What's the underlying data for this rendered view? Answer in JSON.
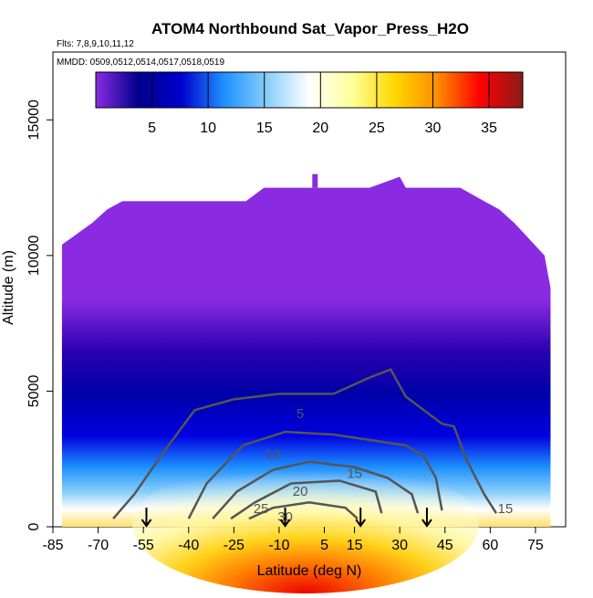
{
  "chart_data": {
    "type": "heatmap",
    "title": "ATOM4 Northbound Sat_Vapor_Press_H2O",
    "subtitle_flights": "Flts: 7,8,9,10,11,12",
    "subtitle_dates": "MMDD: 0509,0512,0514,0517,0518,0519",
    "xlabel": "Latitude (deg N)",
    "ylabel": "Altitude (m)",
    "xlim": [
      -85,
      85
    ],
    "ylim": [
      0,
      17500
    ],
    "x_ticks": [
      -85,
      -70,
      -55,
      -40,
      -25,
      -10,
      5,
      15,
      30,
      45,
      60,
      75
    ],
    "y_ticks": [
      0,
      5000,
      10000,
      15000
    ],
    "colorbar": {
      "range": [
        0,
        38
      ],
      "ticks": [
        5,
        10,
        15,
        20,
        25,
        30,
        35
      ],
      "colors": [
        "#8a2be2",
        "#00008b",
        "#0000cd",
        "#1e90ff",
        "#87cefa",
        "#ffffff",
        "#ffff99",
        "#ffd700",
        "#ff8c00",
        "#ff0000",
        "#8b1a1a"
      ]
    },
    "contour_labels": [
      "5",
      "10",
      "15",
      "20",
      "25",
      "30",
      "15"
    ],
    "profile_markers_lat": [
      -54,
      -8,
      17,
      39
    ],
    "column_top_km": [
      [
        -82,
        10.4
      ],
      [
        -77,
        10.8
      ],
      [
        -72,
        11.2
      ],
      [
        -67,
        11.7
      ],
      [
        -62,
        12.0
      ],
      [
        -50,
        12.0
      ],
      [
        -35,
        12.0
      ],
      [
        -21,
        12.0
      ],
      [
        -15,
        12.5
      ],
      [
        20,
        12.5
      ],
      [
        30,
        12.9
      ],
      [
        32,
        12.5
      ],
      [
        50,
        12.5
      ],
      [
        58,
        12.0
      ],
      [
        63,
        11.7
      ],
      [
        68,
        11.2
      ],
      [
        73,
        10.6
      ],
      [
        78,
        10.0
      ],
      [
        80,
        8.8
      ]
    ]
  }
}
